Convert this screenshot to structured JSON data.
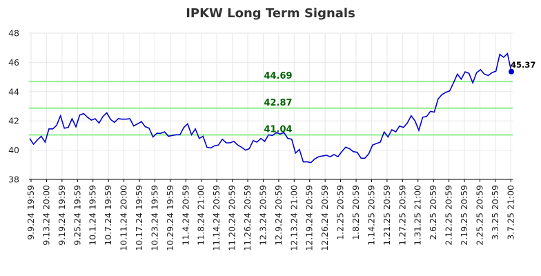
{
  "chart_data": {
    "type": "line",
    "title": "IPKW Long Term Signals",
    "ylim": [
      38,
      48
    ],
    "y_ticks": [
      "38",
      "40",
      "42",
      "44",
      "46",
      "48"
    ],
    "x_tick_labels": [
      "9.9.24 19:59",
      "9.13.24 20:00",
      "9.19.24 19:59",
      "9.25.24 19:59",
      "10.1.24 19:59",
      "10.7.24 19:59",
      "10.11.24 20:00",
      "10.17.24 19:59",
      "10.23.24 19:59",
      "10.29.24 19:59",
      "11.4.24 20:59",
      "11.8.24 21:00",
      "11.14.24 20:59",
      "11.20.24 20:59",
      "11.26.24 20:59",
      "12.3.24 20:59",
      "12.9.24 20:59",
      "12.13.24 21:00",
      "12.19.24 20:59",
      "12.26.24 20:59",
      "1.2.25 20:59",
      "1.8.25 20:59",
      "1.14.25 20:59",
      "1.21.25 20:59",
      "1.27.25 20:59",
      "1.31.25 21:00",
      "2.6.25 20:59",
      "2.12.25 20:59",
      "2.19.25 20:59",
      "2.25.25 20:59",
      "3.3.25 20:59",
      "3.7.25 21:00"
    ],
    "grid": true,
    "signals": [
      {
        "value": 44.69,
        "label": "44.69"
      },
      {
        "value": 42.87,
        "label": "42.87"
      },
      {
        "value": 41.04,
        "label": "41.04"
      }
    ],
    "last_value_label": "45.37",
    "series_color": "#0000cc",
    "signal_color": "#90ee90",
    "signal_label_color": "#006400",
    "values": [
      40.8,
      40.4,
      40.7,
      40.95,
      40.55,
      41.45,
      41.45,
      41.7,
      42.35,
      41.5,
      41.55,
      42.15,
      41.6,
      42.4,
      42.5,
      42.25,
      42.05,
      42.15,
      41.85,
      42.3,
      42.55,
      42.1,
      41.9,
      42.15,
      42.12,
      42.12,
      42.15,
      41.65,
      41.8,
      41.95,
      41.6,
      41.5,
      40.9,
      41.15,
      41.15,
      41.25,
      40.95,
      41.0,
      41.05,
      41.05,
      41.55,
      41.8,
      41.05,
      41.45,
      40.8,
      40.95,
      40.2,
      40.15,
      40.3,
      40.35,
      40.75,
      40.5,
      40.5,
      40.6,
      40.35,
      40.2,
      40.0,
      40.1,
      40.65,
      40.55,
      40.8,
      40.6,
      41.05,
      41.0,
      41.2,
      41.1,
      41.2,
      40.8,
      40.75,
      39.8,
      40.05,
      39.2,
      39.2,
      39.15,
      39.4,
      39.55,
      39.6,
      39.65,
      39.55,
      39.7,
      39.55,
      39.9,
      40.2,
      40.1,
      39.9,
      39.85,
      39.45,
      39.45,
      39.75,
      40.35,
      40.45,
      40.55,
      41.25,
      40.9,
      41.4,
      41.25,
      41.65,
      41.55,
      41.85,
      42.35,
      42.0,
      41.35,
      42.25,
      42.3,
      42.65,
      42.6,
      43.5,
      43.8,
      43.95,
      44.05,
      44.6,
      45.2,
      44.85,
      45.35,
      45.25,
      44.6,
      45.3,
      45.5,
      45.2,
      45.1,
      45.3,
      45.4,
      46.55,
      46.35,
      46.6,
      45.37
    ]
  }
}
